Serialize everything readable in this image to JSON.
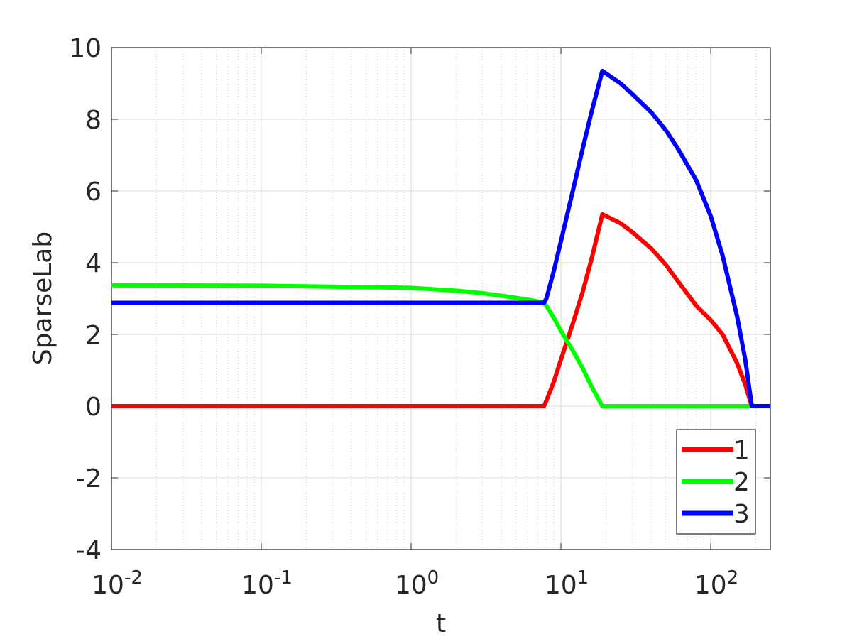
{
  "chart_data": {
    "type": "line",
    "xlabel": "t",
    "ylabel": "SparseLab",
    "xscale": "log",
    "grid": true,
    "minor_grid": true,
    "legend_position": "southeast",
    "x": [
      0.01,
      0.1,
      1,
      2,
      3,
      4,
      5,
      6,
      7,
      7.7,
      8,
      9,
      10,
      12,
      14,
      16,
      18.9,
      25,
      30,
      40,
      50,
      60,
      80,
      100,
      120,
      150,
      170,
      188,
      250
    ],
    "series": [
      {
        "name": "1",
        "color": "#ff0000",
        "values": [
          0,
          0,
          0,
          0,
          0,
          0,
          0,
          0,
          0,
          0,
          0.15,
          0.7,
          1.3,
          2.3,
          3.2,
          4.1,
          5.35,
          5.1,
          4.85,
          4.4,
          3.95,
          3.5,
          2.8,
          2.4,
          2.0,
          1.2,
          0.6,
          0,
          0
        ]
      },
      {
        "name": "2",
        "color": "#00ff00",
        "values": [
          3.37,
          3.36,
          3.3,
          3.22,
          3.15,
          3.08,
          3.02,
          2.97,
          2.92,
          2.88,
          2.8,
          2.45,
          2.1,
          1.55,
          1.05,
          0.55,
          0,
          0,
          0,
          0,
          0,
          0,
          0,
          0,
          0,
          0,
          0,
          0,
          0
        ]
      },
      {
        "name": "3",
        "color": "#0000ff",
        "values": [
          2.88,
          2.88,
          2.88,
          2.88,
          2.88,
          2.88,
          2.88,
          2.88,
          2.88,
          2.88,
          3.0,
          3.8,
          4.6,
          6.0,
          7.2,
          8.2,
          9.35,
          9.0,
          8.7,
          8.2,
          7.7,
          7.2,
          6.3,
          5.3,
          4.2,
          2.5,
          1.3,
          0,
          0
        ]
      }
    ],
    "xlim": [
      0.01,
      250
    ],
    "xticks": [
      {
        "value": 0.01,
        "label": "10",
        "exponent": "-2"
      },
      {
        "value": 0.1,
        "label": "10",
        "exponent": "-1"
      },
      {
        "value": 1,
        "label": "10",
        "exponent": "0"
      },
      {
        "value": 10,
        "label": "10",
        "exponent": "1"
      },
      {
        "value": 100,
        "label": "10",
        "exponent": "2"
      }
    ],
    "ylim": [
      -4,
      10
    ],
    "yticks": [
      -4,
      -2,
      0,
      2,
      4,
      6,
      8,
      10
    ]
  }
}
